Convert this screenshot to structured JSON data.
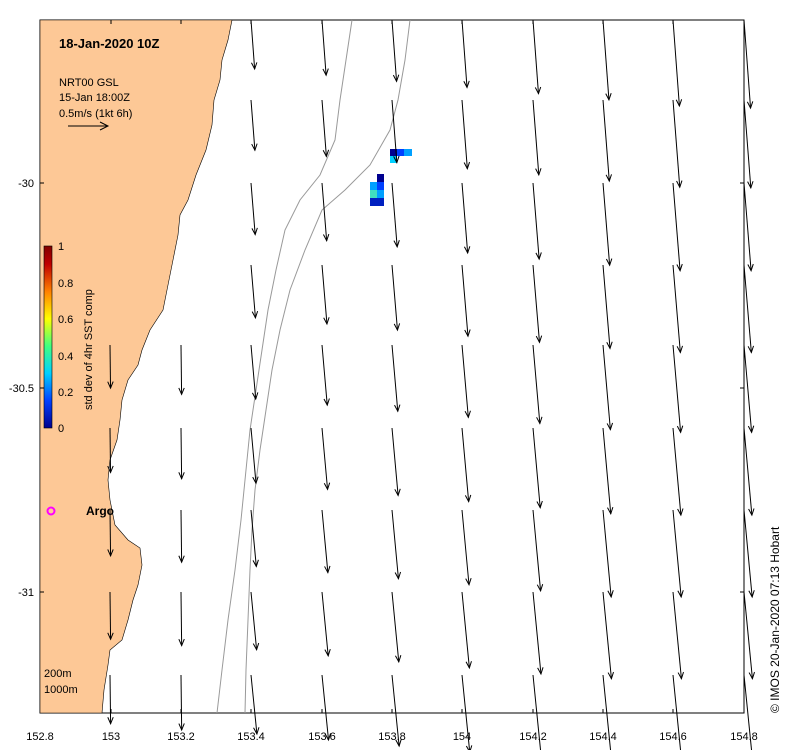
{
  "title": "18-Jan-2020 10Z",
  "legend": {
    "product": "NRT00 GSL",
    "date": "15-Jan 18:00Z",
    "scale": "0.5m/s (1kt 6h)"
  },
  "colorbar": {
    "label": "std dev of 4hr SST comp",
    "ticks": [
      "0",
      "0.2",
      "0.4",
      "0.6",
      "0.8",
      "1"
    ],
    "range": [
      0,
      1
    ],
    "colors": [
      "#00008f",
      "#0040ff",
      "#00d0ff",
      "#40ff80",
      "#ffff00",
      "#ff8000",
      "#c00000",
      "#800000"
    ]
  },
  "axes": {
    "lon_ticks": [
      "152.8",
      "153",
      "153.2",
      "153.4",
      "153.6",
      "153.8",
      "154",
      "154.2",
      "154.4",
      "154.6",
      "154.8"
    ],
    "lat_ticks": [
      "-30",
      "-30.5",
      "-31"
    ],
    "lon_range": [
      152.8,
      154.8
    ],
    "lat_range": [
      -31.3,
      -29.6
    ]
  },
  "argo": {
    "label": "Argo",
    "color": "#ff00ff"
  },
  "isobaths": [
    "200m",
    "1000m"
  ],
  "credit": "© IMOS 20-Jan-2020 07:13 Hobart",
  "colors": {
    "land": "#fdc896",
    "contour": "#999999"
  }
}
